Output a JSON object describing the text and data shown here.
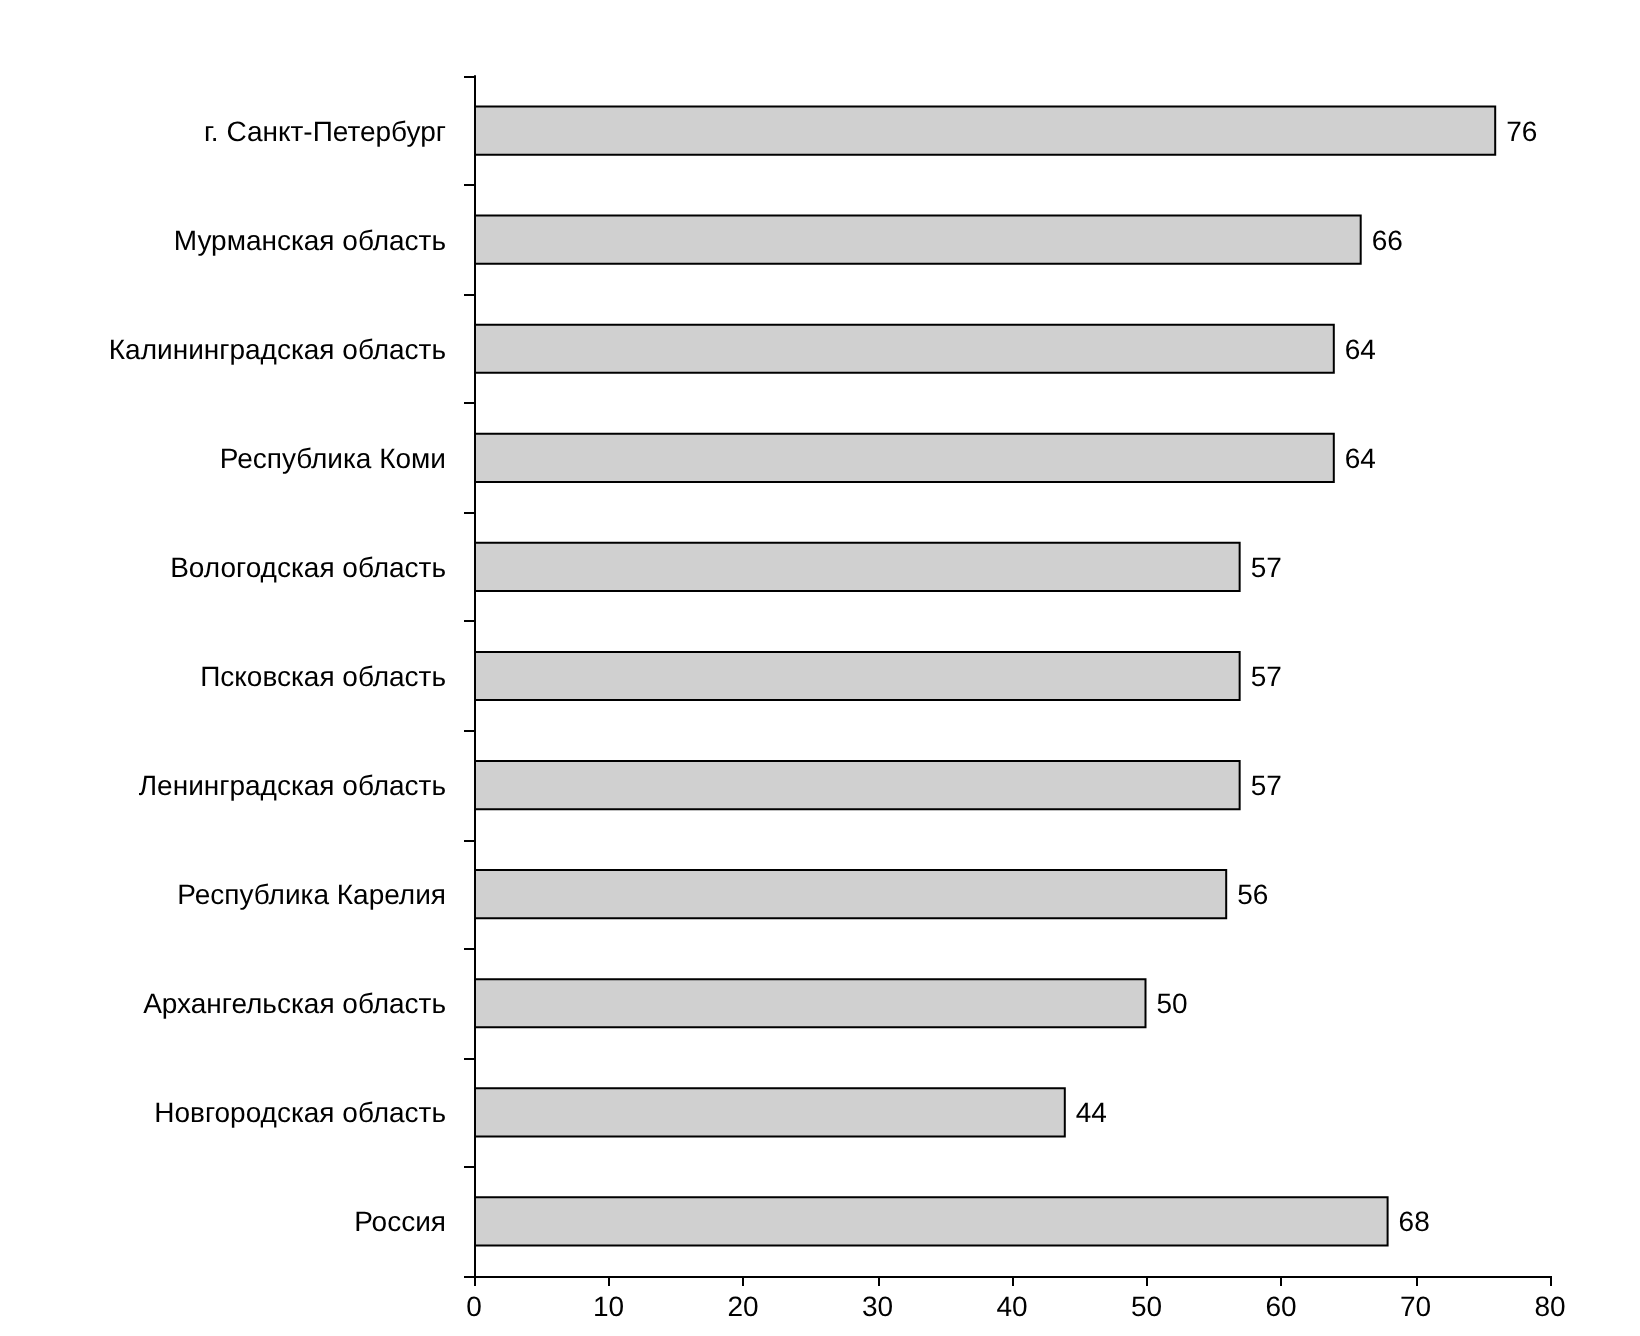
{
  "chart_data": {
    "type": "bar",
    "orientation": "horizontal",
    "categories": [
      "г. Санкт-Петербург",
      "Мурманская область",
      "Калининградская область",
      "Республика Коми",
      "Вологодская область",
      "Псковская область",
      "Ленинградская область",
      "Республика Карелия",
      "Архангельская область",
      "Новгородская область",
      "Россия"
    ],
    "values": [
      76,
      66,
      64,
      64,
      57,
      57,
      57,
      56,
      50,
      44,
      68
    ],
    "color": "#d0d0d0",
    "xlim": [
      0,
      80
    ],
    "xticks": [
      0,
      10,
      20,
      30,
      40,
      50,
      60,
      70,
      80
    ],
    "data_labels": true,
    "grid": false
  }
}
